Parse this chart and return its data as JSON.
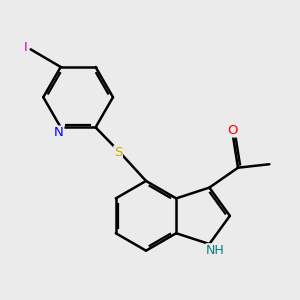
{
  "background_color": "#ebebeb",
  "bond_color": "#000000",
  "bond_width": 1.8,
  "atom_colors": {
    "N_pyridine": "#0000ff",
    "N_H": "#008080",
    "O": "#ff0000",
    "S": "#ccaa00",
    "I": "#cc00cc"
  },
  "figsize": [
    3.0,
    3.0
  ],
  "dpi": 100
}
